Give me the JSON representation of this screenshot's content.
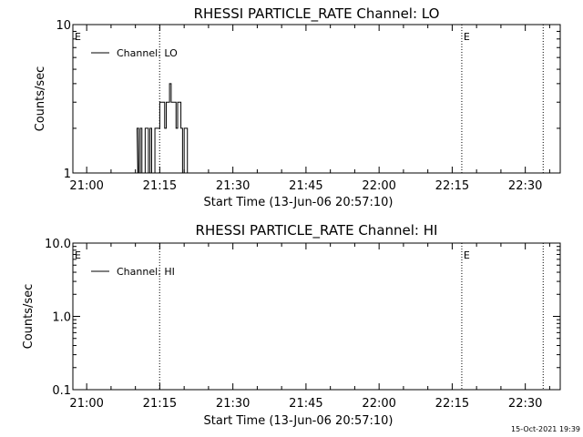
{
  "footer_stamp": "15-Oct-2021 19:39",
  "chart_data": [
    {
      "type": "line",
      "title": "RHESSI PARTICLE_RATE Channel: LO",
      "xlabel": "Start Time (13-Jun-06 20:57:10)",
      "ylabel": "Counts/sec",
      "xlim": [
        "20:57:10",
        "22:37:10"
      ],
      "ylim": [
        1,
        10
      ],
      "yscale": "log",
      "xticks": [
        "21:00",
        "21:15",
        "21:30",
        "21:45",
        "22:00",
        "22:15",
        "22:30"
      ],
      "yticks": [
        "1",
        "10"
      ],
      "legend": "top-left",
      "series": [
        {
          "name": "Channel: LO",
          "x": [
            "21:09:40",
            "21:10:00",
            "21:10:10",
            "21:10:20",
            "21:10:40",
            "21:11:00",
            "21:11:20",
            "21:11:40",
            "21:12:00",
            "21:12:20",
            "21:12:40",
            "21:13:00",
            "21:13:20",
            "21:13:40",
            "21:14:00",
            "21:14:20",
            "21:14:40",
            "21:15:00",
            "21:15:20",
            "21:15:40",
            "21:16:00",
            "21:16:20",
            "21:16:40",
            "21:17:00",
            "21:17:20",
            "21:17:40",
            "21:18:00",
            "21:18:20",
            "21:18:40",
            "21:19:00",
            "21:19:20",
            "21:19:40",
            "21:20:00",
            "21:20:20",
            "21:20:40",
            "21:21:00",
            "21:21:20"
          ],
          "values": [
            1,
            1,
            1,
            2,
            1,
            2,
            1,
            1,
            2,
            2,
            1,
            2,
            1,
            1,
            2,
            2,
            2,
            3,
            3,
            3,
            2,
            3,
            3,
            4,
            3,
            3,
            3,
            2,
            3,
            3,
            2,
            1,
            2,
            2,
            1,
            1,
            1
          ]
        }
      ]
    },
    {
      "type": "line",
      "title": "RHESSI PARTICLE_RATE Channel: HI",
      "xlabel": "Start Time (13-Jun-06 20:57:10)",
      "ylabel": "Counts/sec",
      "xlim": [
        "20:57:10",
        "22:37:10"
      ],
      "ylim": [
        0.1,
        10
      ],
      "yscale": "log",
      "xticks": [
        "21:00",
        "21:15",
        "21:30",
        "21:45",
        "22:00",
        "22:15",
        "22:30"
      ],
      "yticks": [
        "0.1",
        "1.0",
        "10.0"
      ],
      "legend": "top-left",
      "series": [
        {
          "name": "Channel: HI",
          "x": [],
          "values": []
        }
      ]
    }
  ]
}
